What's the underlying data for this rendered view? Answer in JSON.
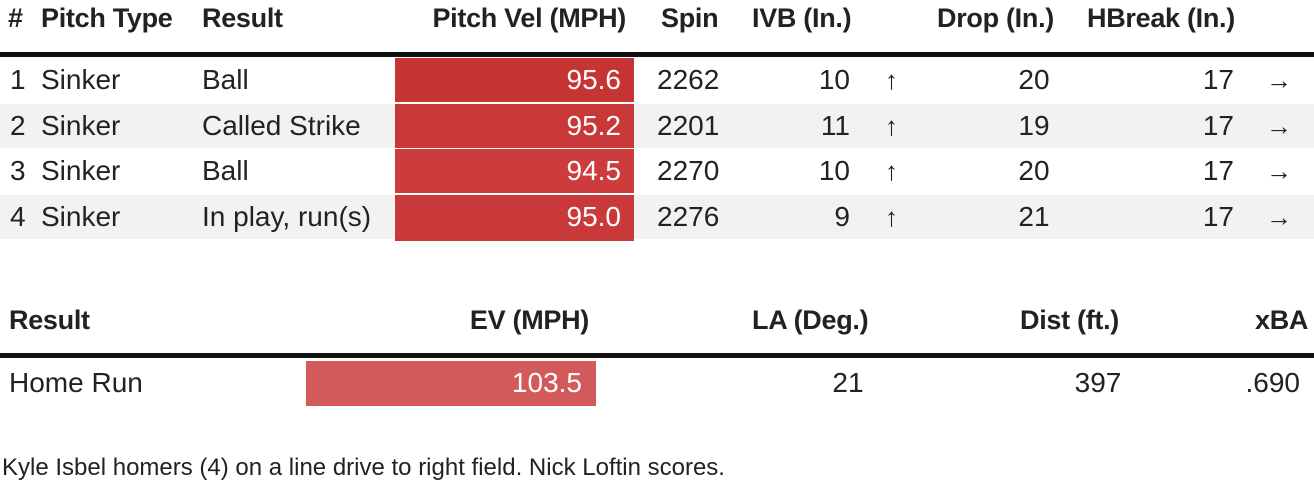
{
  "pitch_table": {
    "headers": {
      "num": "#",
      "pitch_type": "Pitch Type",
      "result": "Result",
      "vel": "Pitch Vel (MPH)",
      "spin": "Spin",
      "ivb": "IVB (In.)",
      "drop": "Drop (In.)",
      "hbreak": "HBreak (In.)"
    },
    "rows": [
      {
        "num": "1",
        "pitch_type": "Sinker",
        "result": "Ball",
        "vel": "95.6",
        "spin": "2262",
        "ivb": "10",
        "ivb_arrow": "↑",
        "drop": "20",
        "hbreak": "17",
        "hbreak_arrow": "→",
        "vel_color": "#c73434"
      },
      {
        "num": "2",
        "pitch_type": "Sinker",
        "result": "Called Strike",
        "vel": "95.2",
        "spin": "2201",
        "ivb": "11",
        "ivb_arrow": "↑",
        "drop": "19",
        "hbreak": "17",
        "hbreak_arrow": "→",
        "vel_color": "#c93838"
      },
      {
        "num": "3",
        "pitch_type": "Sinker",
        "result": "Ball",
        "vel": "94.5",
        "spin": "2270",
        "ivb": "10",
        "ivb_arrow": "↑",
        "drop": "20",
        "hbreak": "17",
        "hbreak_arrow": "→",
        "vel_color": "#cc3c3c"
      },
      {
        "num": "4",
        "pitch_type": "Sinker",
        "result": "In play, run(s)",
        "vel": "95.0",
        "spin": "2276",
        "ivb": "9",
        "ivb_arrow": "↑",
        "drop": "21",
        "hbreak": "17",
        "hbreak_arrow": "→",
        "vel_color": "#ca3939"
      }
    ]
  },
  "batted_table": {
    "headers": {
      "result": "Result",
      "ev": "EV (MPH)",
      "la": "LA (Deg.)",
      "dist": "Dist (ft.)",
      "xba": "xBA"
    },
    "row": {
      "result": "Home Run",
      "ev": "103.5",
      "la": "21",
      "dist": "397",
      "xba": ".690",
      "ev_color": "#d35a5a"
    }
  },
  "description": "Kyle Isbel homers (4) on a line drive to right field. Nick Loftin scores.",
  "colors": {
    "text": "#222222",
    "rule": "#111111",
    "stripe": "#f2f2f2"
  }
}
